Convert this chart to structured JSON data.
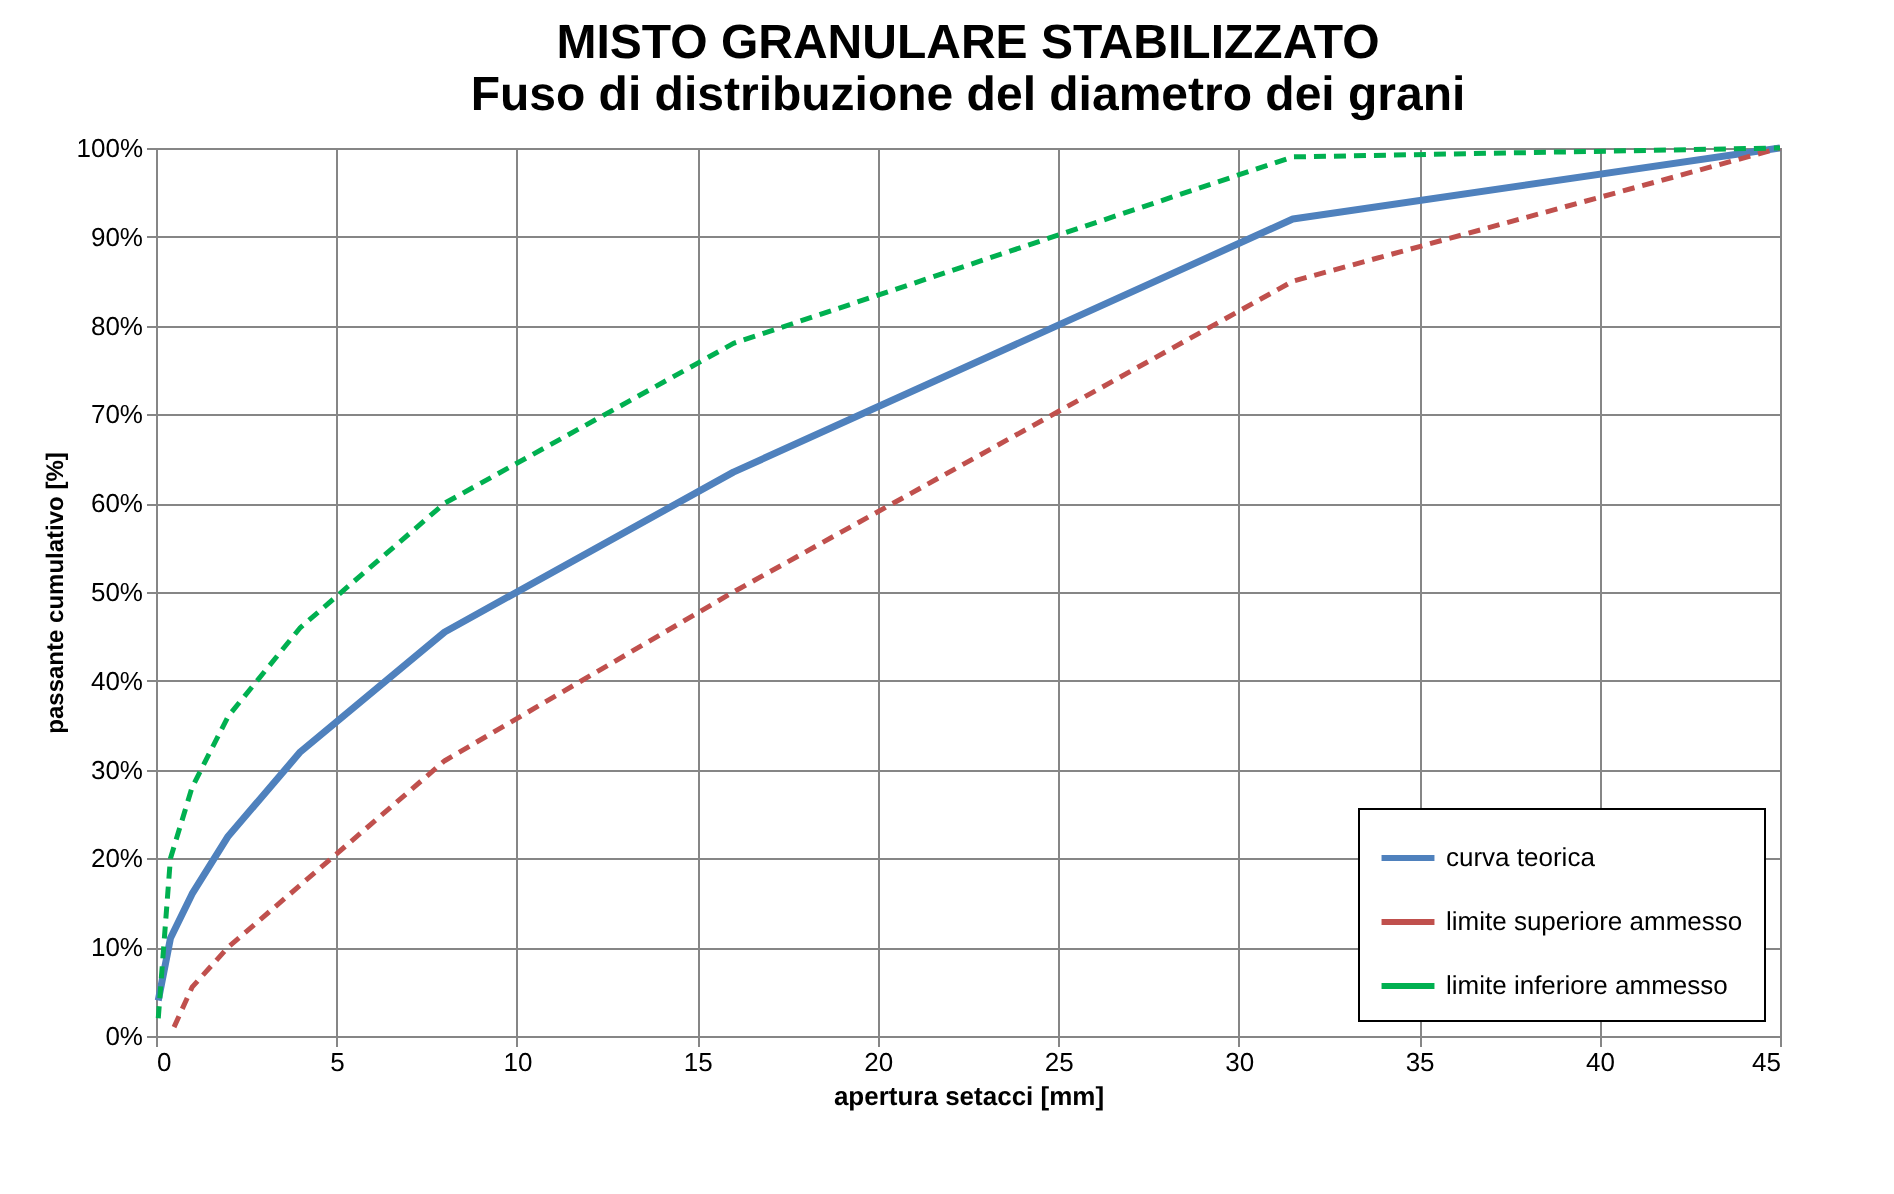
{
  "chart_data": {
    "type": "line",
    "title": [
      "MISTO GRANULARE STABILIZZATO",
      "Fuso di distribuzione del diametro dei grani"
    ],
    "xlabel": "apertura setacci [mm]",
    "ylabel": "passante cumulativo [%]",
    "xlim": [
      0,
      45
    ],
    "xticks": [
      0,
      5,
      10,
      15,
      20,
      25,
      30,
      35,
      40,
      45
    ],
    "ylim": [
      0,
      100
    ],
    "yticks": [
      {
        "value": 0,
        "label": "0%"
      },
      {
        "value": 10,
        "label": "10%"
      },
      {
        "value": 20,
        "label": "20%"
      },
      {
        "value": 30,
        "label": "30%"
      },
      {
        "value": 40,
        "label": "40%"
      },
      {
        "value": 50,
        "label": "50%"
      },
      {
        "value": 60,
        "label": "60%"
      },
      {
        "value": 70,
        "label": "70%"
      },
      {
        "value": 80,
        "label": "80%"
      },
      {
        "value": 90,
        "label": "90%"
      },
      {
        "value": 100,
        "label": "100%"
      }
    ],
    "grid": true,
    "legend": "bottom right",
    "marker": "none",
    "series": [
      {
        "name": "curva teorica",
        "color": "#4f81bd",
        "line_style": "solid",
        "x": [
          0.063,
          0.4,
          1,
          2,
          4,
          8,
          16,
          31.5,
          45
        ],
        "values": [
          4,
          11,
          16,
          22.5,
          32,
          45.5,
          63.5,
          92,
          100
        ]
      },
      {
        "name": "limite superiore ammesso",
        "color": "#c0504d",
        "line_style": "dashed",
        "x": [
          0.5,
          1,
          2,
          4,
          8,
          16,
          31.5,
          45
        ],
        "values": [
          1,
          5.5,
          10,
          17,
          31,
          50,
          85,
          100
        ]
      },
      {
        "name": "limite inferiore ammesso",
        "color": "#00b050",
        "line_style": "dashed",
        "x": [
          0.063,
          0.4,
          1,
          2,
          4,
          8,
          16,
          31.5,
          45
        ],
        "values": [
          2,
          20,
          28,
          36,
          46,
          60,
          78,
          99,
          100
        ]
      }
    ]
  }
}
